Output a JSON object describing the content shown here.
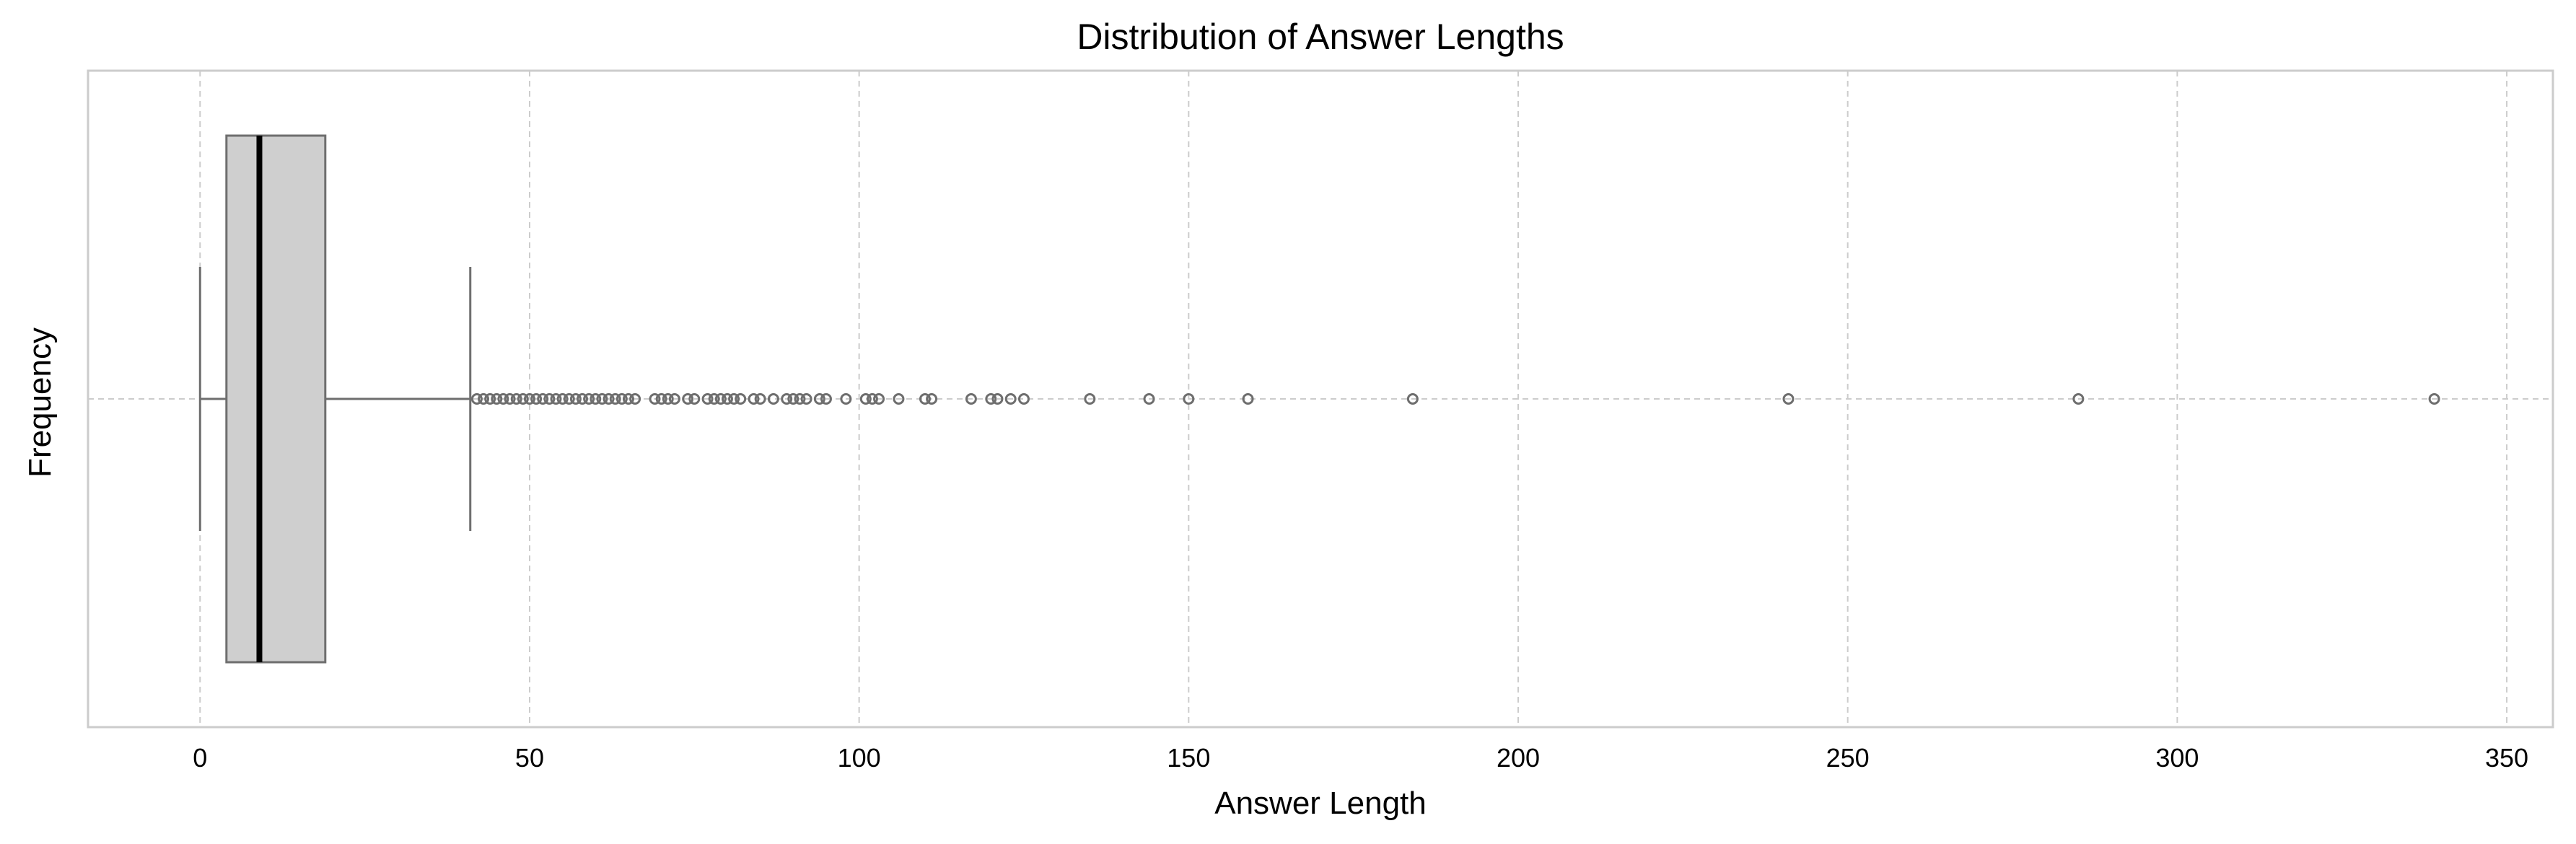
{
  "chart_data": {
    "type": "box",
    "title": "Distribution of Answer Lengths",
    "xlabel": "Answer Length",
    "ylabel": "Frequency",
    "orientation": "horizontal",
    "xlim": [
      -17,
      357
    ],
    "xticks": [
      0,
      50,
      100,
      150,
      200,
      250,
      300,
      350
    ],
    "grid": true,
    "colors": {
      "box_fill": "#cfcfcf",
      "box_edge": "#6e6e6e",
      "median": "#000000",
      "grid": "#cccccc",
      "frame": "#cccccc",
      "outlier_edge": "#6e6e6e"
    },
    "box": {
      "whisker_low": 0,
      "q1": 4,
      "median": 9,
      "q3": 19,
      "whisker_high": 41
    },
    "outliers": [
      42,
      43,
      44,
      45,
      46,
      47,
      48,
      49,
      50,
      51,
      52,
      53,
      54,
      55,
      56,
      57,
      58,
      59,
      60,
      61,
      62,
      63,
      64,
      65,
      66,
      69,
      70,
      71,
      72,
      74,
      75,
      77,
      78,
      79,
      80,
      81,
      82,
      84,
      85,
      87,
      89,
      90,
      91,
      92,
      94,
      95,
      98,
      101,
      102,
      103,
      106,
      110,
      111,
      117,
      120,
      121,
      123,
      125,
      135,
      144,
      150,
      159,
      184,
      241,
      285,
      339
    ]
  }
}
